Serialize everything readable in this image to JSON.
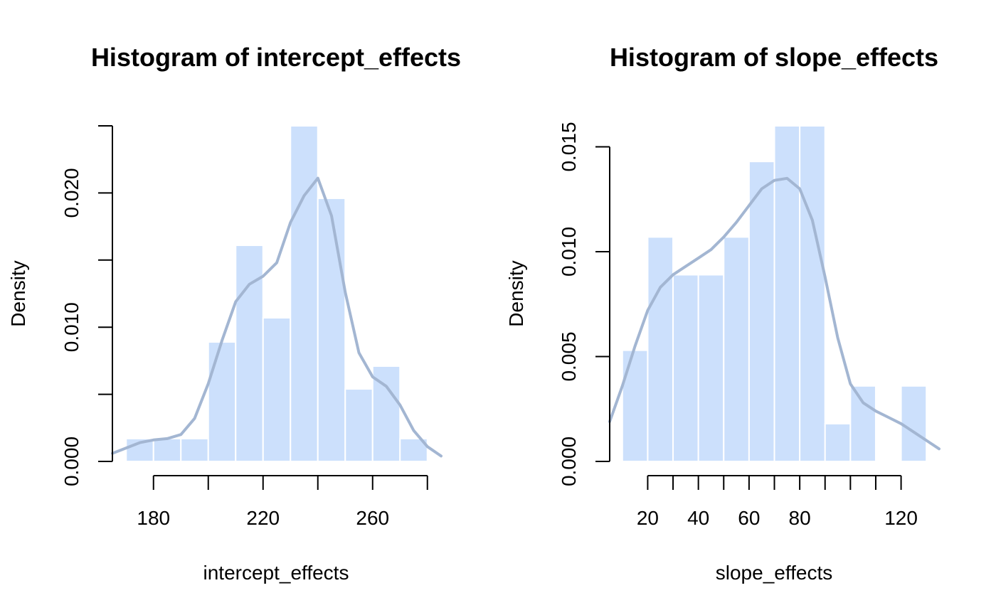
{
  "colors": {
    "bar_fill": "#cce0fc",
    "bar_edge": "#ffffff",
    "density_line": "#a3b6d2",
    "axis": "#000000"
  },
  "chart_data": [
    {
      "type": "bar",
      "subtype": "histogram",
      "title": "Histogram of intercept_effects",
      "xlabel": "intercept_effects",
      "ylabel": "Density",
      "xlim": [
        165,
        285
      ],
      "ylim": [
        0,
        0.025
      ],
      "bin_edges": [
        170,
        180,
        190,
        200,
        210,
        220,
        230,
        240,
        250,
        260,
        270,
        280
      ],
      "values": [
        0.0017,
        0.0017,
        0.0017,
        0.0089,
        0.0161,
        0.0107,
        0.025,
        0.0196,
        0.0054,
        0.0071,
        0.0017
      ],
      "x_ticks": [
        180,
        200,
        220,
        240,
        260,
        280
      ],
      "x_tick_labels": [
        "180",
        "",
        "220",
        "",
        "260",
        ""
      ],
      "y_ticks": [
        0.0,
        0.005,
        0.01,
        0.015,
        0.02,
        0.025
      ],
      "y_tick_labels": [
        "0.000",
        "",
        "0.010",
        "",
        "0.020",
        ""
      ],
      "density": {
        "x": [
          165,
          170,
          175,
          180,
          185,
          190,
          195,
          200,
          205,
          210,
          215,
          220,
          225,
          230,
          235,
          240,
          245,
          250,
          255,
          260,
          265,
          270,
          275,
          280,
          285
        ],
        "y": [
          0.0006,
          0.001,
          0.0014,
          0.0016,
          0.0017,
          0.002,
          0.0032,
          0.0058,
          0.009,
          0.0119,
          0.0132,
          0.0138,
          0.0148,
          0.0178,
          0.0198,
          0.0211,
          0.0183,
          0.0126,
          0.0081,
          0.0063,
          0.0056,
          0.0042,
          0.0023,
          0.0011,
          0.0004
        ]
      },
      "grid": false,
      "legend": "none"
    },
    {
      "type": "bar",
      "subtype": "histogram",
      "title": "Histogram of slope_effects",
      "xlabel": "slope_effects",
      "ylabel": "Density",
      "xlim": [
        5,
        135
      ],
      "ylim": [
        0,
        0.016
      ],
      "bin_edges": [
        10,
        20,
        30,
        40,
        50,
        60,
        70,
        80,
        90,
        100,
        110,
        120,
        130
      ],
      "values": [
        0.0053,
        0.0107,
        0.0089,
        0.0089,
        0.0107,
        0.0143,
        0.016,
        0.016,
        0.0018,
        0.0036,
        0.0,
        0.0036
      ],
      "x_ticks": [
        20,
        30,
        40,
        50,
        60,
        70,
        80,
        90,
        100,
        110,
        120
      ],
      "x_tick_labels": [
        "20",
        "",
        "40",
        "",
        "60",
        "",
        "80",
        "",
        "",
        "",
        "120"
      ],
      "y_ticks": [
        0.0,
        0.005,
        0.01,
        0.015
      ],
      "y_tick_labels": [
        "0.000",
        "0.005",
        "0.010",
        "0.015"
      ],
      "density": {
        "x": [
          5,
          10,
          15,
          20,
          25,
          30,
          35,
          40,
          45,
          50,
          55,
          60,
          65,
          70,
          75,
          80,
          85,
          90,
          95,
          100,
          105,
          110,
          115,
          120,
          125,
          130,
          135
        ],
        "y": [
          0.0019,
          0.0036,
          0.0055,
          0.0072,
          0.0083,
          0.0089,
          0.0093,
          0.0097,
          0.0101,
          0.0107,
          0.0114,
          0.0122,
          0.013,
          0.0134,
          0.0135,
          0.013,
          0.0115,
          0.0088,
          0.0059,
          0.0037,
          0.0028,
          0.0024,
          0.0021,
          0.0018,
          0.0014,
          0.001,
          0.0006
        ]
      },
      "grid": false,
      "legend": "none"
    }
  ]
}
